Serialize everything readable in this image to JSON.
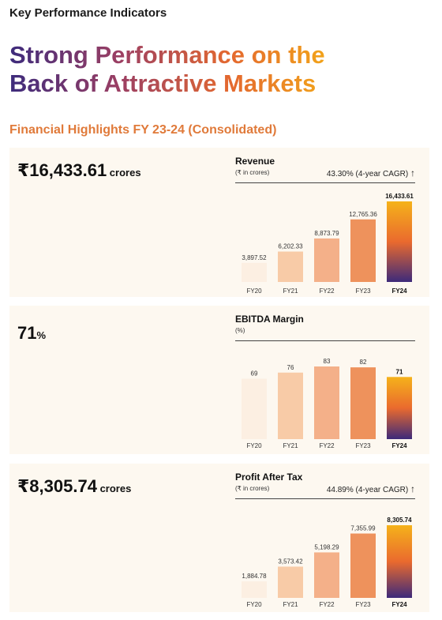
{
  "page": {
    "kpi_title": "Key Performance Indicators",
    "headline_line1": "Strong Performance on the",
    "headline_line2": "Back of Attractive Markets",
    "subhead": "Financial Highlights FY 23-24 (Consolidated)"
  },
  "colors": {
    "bar_palette": [
      "#fcefe2",
      "#f8cba7",
      "#f4b089",
      "#ee925c"
    ],
    "bar_last_gradient": [
      "#f5b21a",
      "#ea6a2e",
      "#3d2a7a"
    ]
  },
  "panels": [
    {
      "big_value": "₹16,433.61",
      "big_unit": " crores",
      "title": "Revenue",
      "unit": "(₹ in crores)",
      "cagr": "43.30% (4-year CAGR)",
      "cagr_arrow": "↑"
    },
    {
      "big_value": "71",
      "big_unit": "%",
      "title": "EBITDA Margin",
      "unit": "(%)",
      "cagr": "",
      "cagr_arrow": ""
    },
    {
      "big_value": "₹8,305.74",
      "big_unit": " crores",
      "title": "Profit After Tax",
      "unit": "(₹ in crores)",
      "cagr": "44.89% (4-year CAGR)",
      "cagr_arrow": "↑"
    }
  ],
  "chart_data": [
    {
      "type": "bar",
      "title": "Revenue",
      "categories": [
        "FY20",
        "FY21",
        "FY22",
        "FY23",
        "FY24"
      ],
      "values": [
        3897.52,
        6202.33,
        8873.79,
        12765.36,
        16433.61
      ],
      "labels": [
        "3,897.52",
        "6,202.33",
        "8,873.79",
        "12,765.36",
        "16,433.61"
      ],
      "ylim": [
        0,
        16433.61
      ]
    },
    {
      "type": "bar",
      "title": "EBITDA Margin",
      "categories": [
        "FY20",
        "FY21",
        "FY22",
        "FY23",
        "FY24"
      ],
      "values": [
        69,
        76,
        83,
        82,
        71
      ],
      "labels": [
        "69",
        "76",
        "83",
        "82",
        "71"
      ],
      "ylim": [
        0,
        83
      ]
    },
    {
      "type": "bar",
      "title": "Profit After Tax",
      "categories": [
        "FY20",
        "FY21",
        "FY22",
        "FY23",
        "FY24"
      ],
      "values": [
        1884.78,
        3573.42,
        5198.29,
        7355.99,
        8305.74
      ],
      "labels": [
        "1,884.78",
        "3,573.42",
        "5,198.29",
        "7,355.99",
        "8,305.74"
      ],
      "ylim": [
        0,
        8305.74
      ]
    }
  ]
}
